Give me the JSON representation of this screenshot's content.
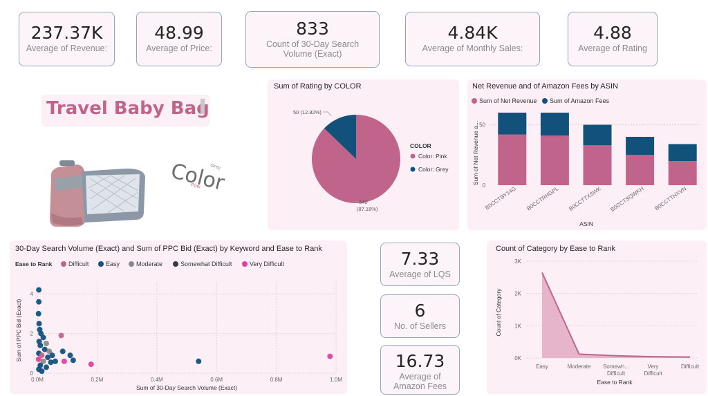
{
  "kpis": [
    {
      "value": "237.37K",
      "label": "Average of Revenue:"
    },
    {
      "value": "48.99",
      "label": "Average of Price:"
    },
    {
      "value": "833",
      "label": "Count of 30-Day Search Volume (Exact)"
    },
    {
      "value": "4.84K",
      "label": "Average of Monthly Sales:"
    },
    {
      "value": "4.88",
      "label": "Average of Rating"
    }
  ],
  "side_kpis": [
    {
      "value": "7.33",
      "label": "Average of LQS"
    },
    {
      "value": "6",
      "label": "No. of Sellers"
    },
    {
      "value": "16.73",
      "label": "Average of Amazon Fees"
    }
  ],
  "product": {
    "title": "Travel Baby Bag",
    "color_word": "Color",
    "color_grey": "Grey",
    "color_pink": "Pink"
  },
  "colors": {
    "pink": "#c0648c",
    "navy": "#12517a",
    "grey": "#8a8a8a",
    "dark": "#3a3a3a",
    "magenta": "#e040a0"
  },
  "chart_data": [
    {
      "type": "pie",
      "title": "Sum of Rating by COLOR",
      "legend_title": "COLOR",
      "slices": [
        {
          "name": "Color: Pink",
          "value": 340,
          "label": "340 (87.18%)"
        },
        {
          "name": "Color: Grey",
          "value": 50,
          "label": "50 (12.82%)"
        }
      ]
    },
    {
      "type": "bar",
      "stacked": true,
      "title": "Net Revenue and of Amazon Fees by ASIN",
      "xlabel": "ASIN",
      "ylabel": "Sum of Net Revenue a...",
      "categories": [
        "B0CCTSY14G",
        "B0CCTRHGPL",
        "B0CCTTXSWK",
        "B0CCTSQWKH",
        "B0CCTTHXVN"
      ],
      "series": [
        {
          "name": "Sum of Net Revenue",
          "values": [
            42,
            41,
            33,
            25,
            20
          ]
        },
        {
          "name": "Sum of Amazon Fees",
          "values": [
            18,
            19,
            17,
            15,
            14
          ]
        }
      ],
      "yticks": [
        "0",
        "50"
      ],
      "ylim": [
        0,
        60
      ]
    },
    {
      "type": "scatter",
      "title": "30-Day Search Volume (Exact) and Sum of PPC Bid (Exact) by Keyword and Ease to Rank",
      "legend_title": "Ease to Rank",
      "legend": [
        "Difficult",
        "Easy",
        "Moderate",
        "Somewhat Difficult",
        "Very Difficult"
      ],
      "xlabel": "Sum of 30-Day Search Volume (Exact)",
      "ylabel": "Sum of PPC Bid (Exact)",
      "xticks": [
        "0.0M",
        "0.2M",
        "0.4M",
        "0.6M",
        "0.8M",
        "1.0M"
      ],
      "yticks": [
        "0",
        "2",
        "4"
      ],
      "xlim": [
        0,
        1.0
      ],
      "ylim": [
        0,
        4.6
      ],
      "points": [
        {
          "x": 0.005,
          "y": 4.2,
          "c": "Easy"
        },
        {
          "x": 0.005,
          "y": 3.6,
          "c": "Easy"
        },
        {
          "x": 0.004,
          "y": 3.0,
          "c": "Easy"
        },
        {
          "x": 0.006,
          "y": 2.5,
          "c": "Easy"
        },
        {
          "x": 0.008,
          "y": 2.2,
          "c": "Easy"
        },
        {
          "x": 0.012,
          "y": 2.0,
          "c": "Easy"
        },
        {
          "x": 0.02,
          "y": 1.8,
          "c": "Easy"
        },
        {
          "x": 0.006,
          "y": 1.6,
          "c": "Easy"
        },
        {
          "x": 0.03,
          "y": 1.5,
          "c": "Moderate"
        },
        {
          "x": 0.01,
          "y": 1.4,
          "c": "Easy"
        },
        {
          "x": 0.025,
          "y": 1.2,
          "c": "Easy"
        },
        {
          "x": 0.04,
          "y": 1.1,
          "c": "Moderate"
        },
        {
          "x": 0.005,
          "y": 1.0,
          "c": "Easy"
        },
        {
          "x": 0.015,
          "y": 0.9,
          "c": "Difficult"
        },
        {
          "x": 0.035,
          "y": 0.8,
          "c": "Easy"
        },
        {
          "x": 0.05,
          "y": 0.9,
          "c": "Easy"
        },
        {
          "x": 0.004,
          "y": 0.7,
          "c": "Very Difficult"
        },
        {
          "x": 0.02,
          "y": 0.6,
          "c": "Moderate"
        },
        {
          "x": 0.045,
          "y": 0.55,
          "c": "Easy"
        },
        {
          "x": 0.06,
          "y": 0.6,
          "c": "Easy"
        },
        {
          "x": 0.01,
          "y": 0.4,
          "c": "Easy"
        },
        {
          "x": 0.03,
          "y": 0.3,
          "c": "Easy"
        },
        {
          "x": 0.005,
          "y": 0.2,
          "c": "Easy"
        },
        {
          "x": 0.015,
          "y": 0.1,
          "c": "Easy"
        },
        {
          "x": 0.08,
          "y": 1.9,
          "c": "Difficult"
        },
        {
          "x": 0.085,
          "y": 1.1,
          "c": "Easy"
        },
        {
          "x": 0.09,
          "y": 0.6,
          "c": "Very Difficult"
        },
        {
          "x": 0.12,
          "y": 0.65,
          "c": "Easy"
        },
        {
          "x": 0.11,
          "y": 0.9,
          "c": "Easy"
        },
        {
          "x": 0.18,
          "y": 0.45,
          "c": "Very Difficult"
        },
        {
          "x": 0.54,
          "y": 0.6,
          "c": "Easy"
        },
        {
          "x": 0.98,
          "y": 0.85,
          "c": "Very Difficult"
        }
      ]
    },
    {
      "type": "area",
      "title": "Count of Category by Ease to Rank",
      "xlabel": "Ease to Rank",
      "ylabel": "Count of Category",
      "categories": [
        "Easy",
        "Moderate",
        "Somewh... Difficult",
        "Very Difficult",
        "Difficult"
      ],
      "values": [
        2650,
        120,
        70,
        40,
        30
      ],
      "yticks": [
        "0K",
        "1K",
        "2K",
        "3K"
      ],
      "ylim": [
        0,
        3000
      ]
    }
  ]
}
